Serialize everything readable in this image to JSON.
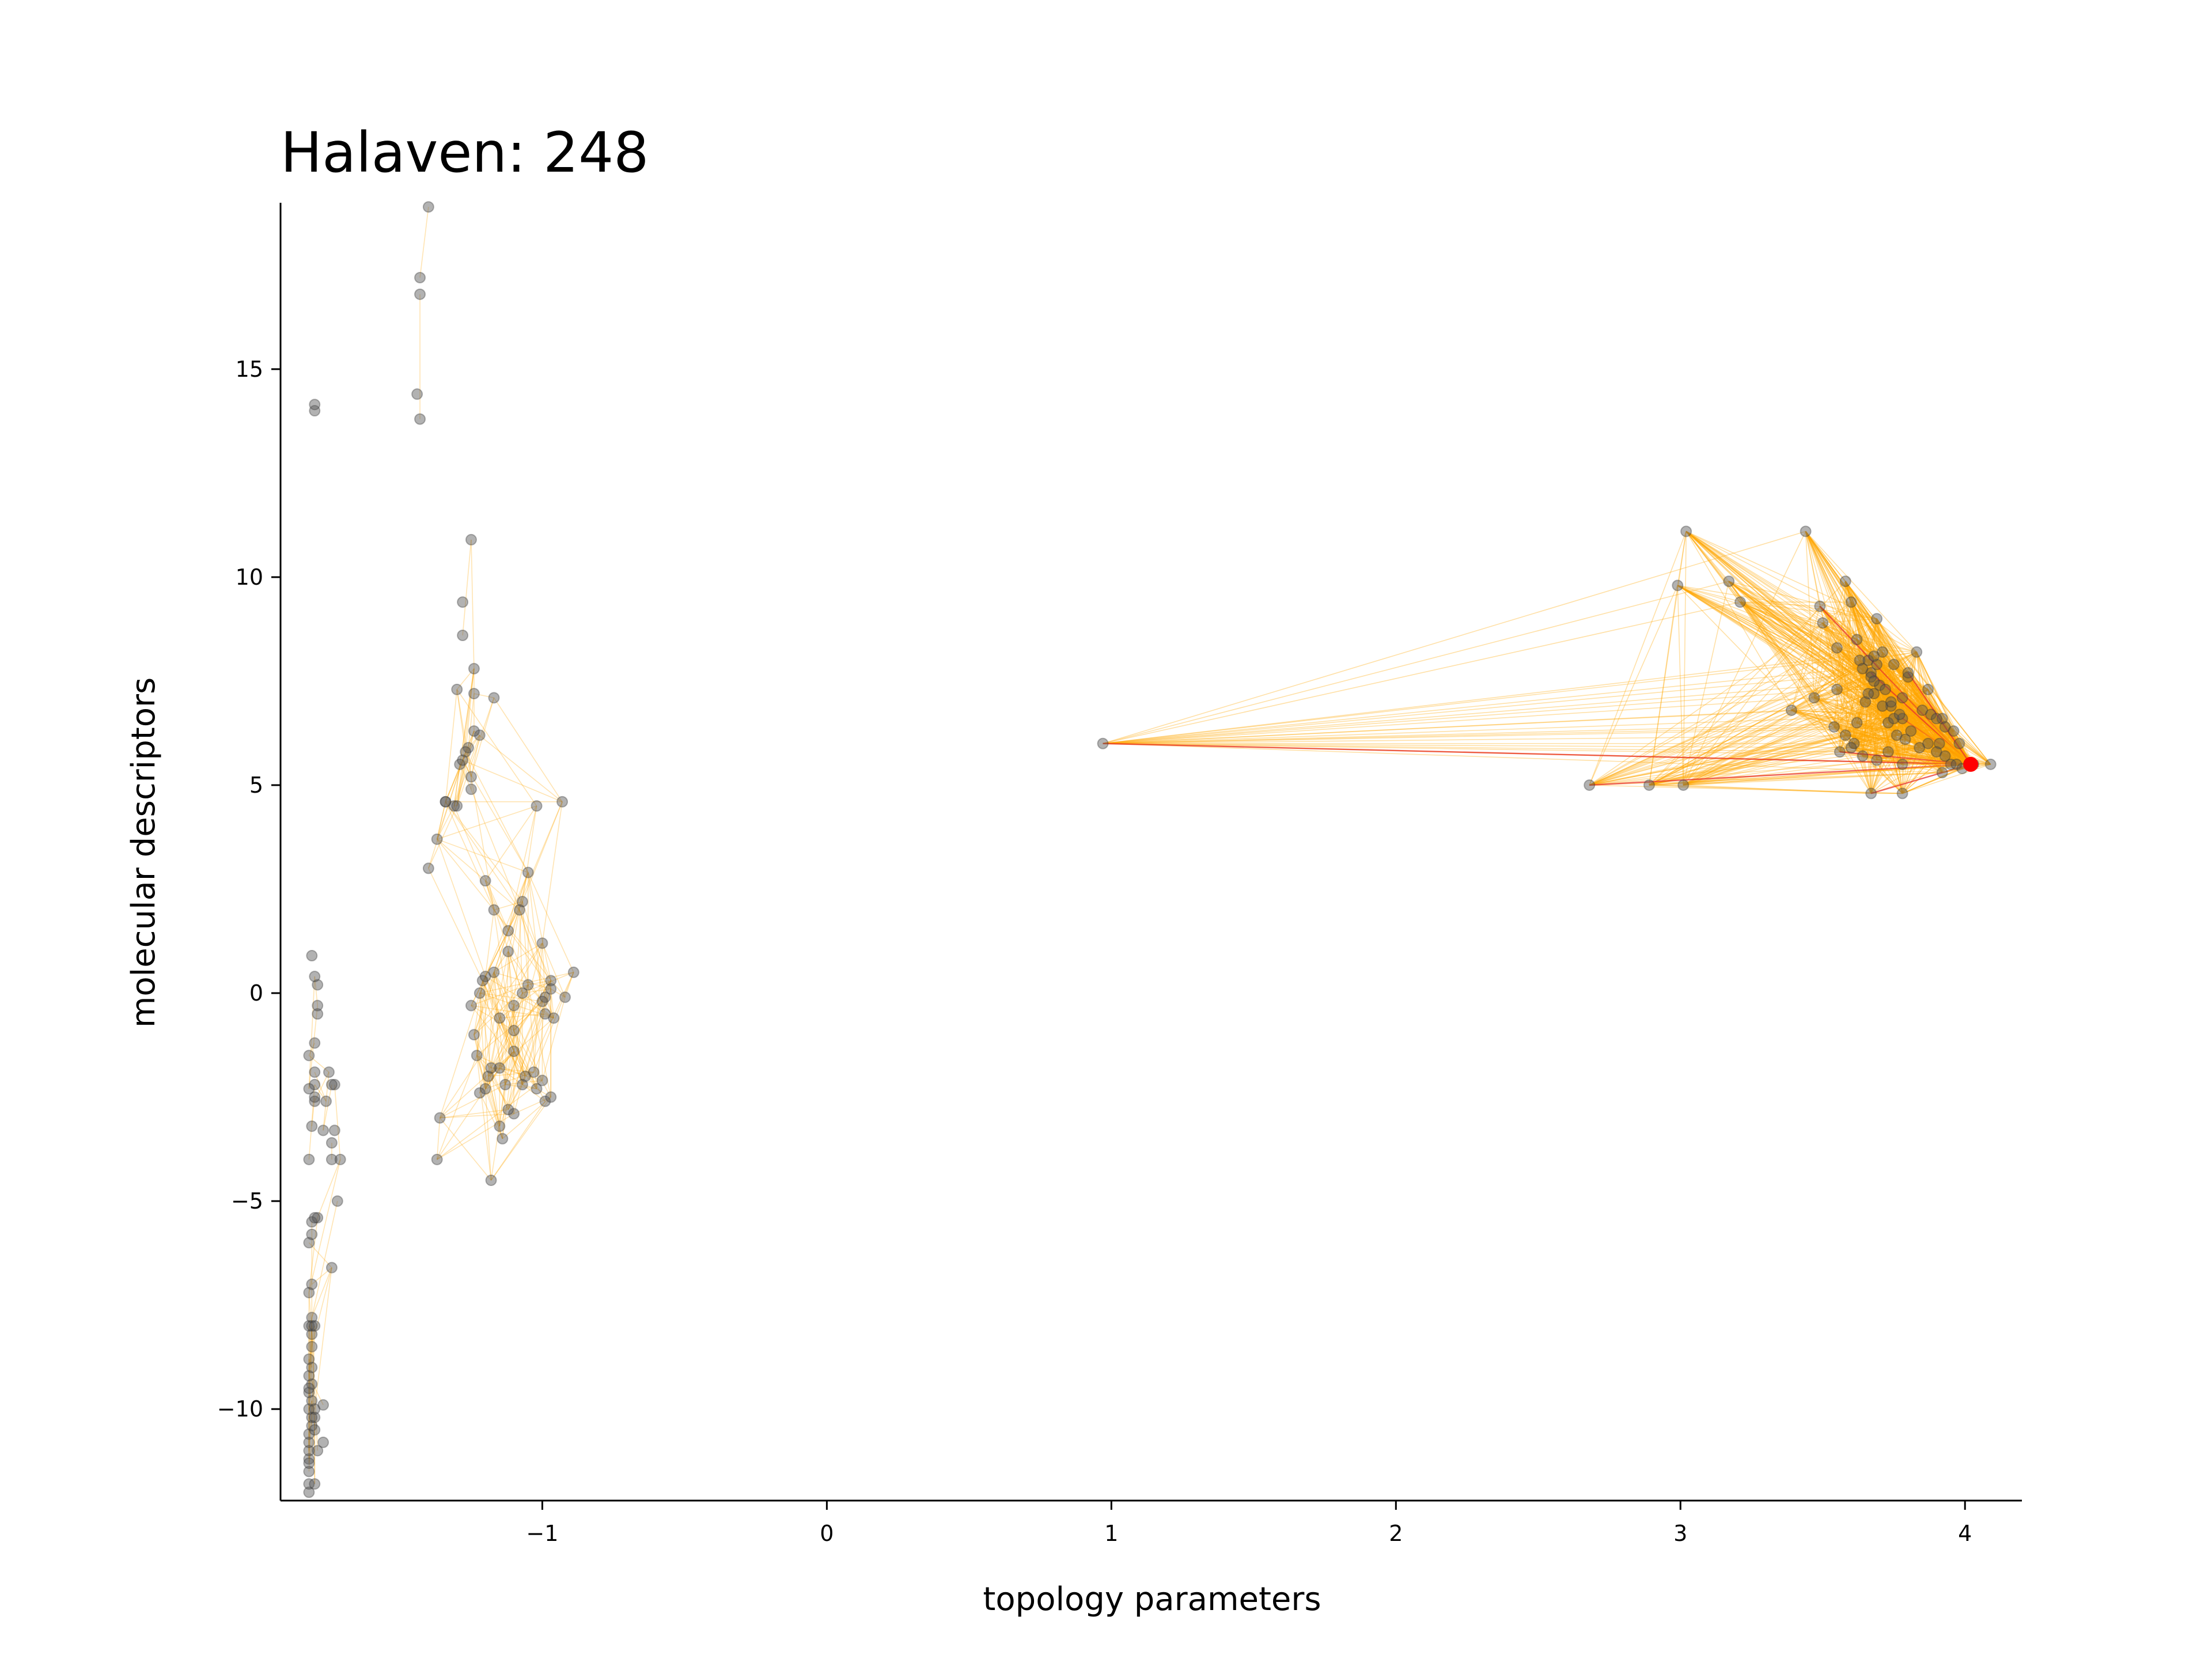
{
  "chart_data": {
    "type": "scatter",
    "title": "Halaven: 248",
    "xlabel": "topology parameters",
    "ylabel": "molecular descriptors",
    "xlim": [
      -1.92,
      4.2
    ],
    "ylim": [
      -12.2,
      19.0
    ],
    "xticks": [
      -1,
      0,
      1,
      2,
      3,
      4
    ],
    "xtick_labels": [
      "−1",
      "0",
      "1",
      "2",
      "3",
      "4"
    ],
    "yticks": [
      -10,
      -5,
      0,
      5,
      10,
      15
    ],
    "ytick_labels": [
      "−10",
      "−5",
      "0",
      "5",
      "10",
      "15"
    ],
    "grid": false,
    "colors": {
      "points": "#555555",
      "edges": "#ffa500",
      "highlight": "#ff0000",
      "highlight_edges": "#e8332a"
    },
    "highlight_point": {
      "x": 4.02,
      "y": 5.5
    },
    "series": [
      {
        "x": [
          -1.82,
          -1.82,
          -1.82,
          -1.82,
          -1.82,
          -1.82,
          -1.82,
          -1.81,
          -1.81,
          -1.82,
          -1.81,
          -1.82,
          -1.81,
          -1.82,
          -1.81,
          -1.82,
          -1.81,
          -1.81,
          -1.82,
          -1.81,
          -1.82,
          -1.81,
          -1.82,
          -1.81,
          -1.81,
          -1.79,
          -1.8,
          -1.82,
          -1.81,
          -1.8,
          -1.8,
          -1.8,
          -1.82,
          -1.82,
          -1.8,
          -1.8,
          -1.79,
          -1.79,
          -1.79,
          -1.8,
          -1.81,
          -1.79,
          -1.82,
          -1.81,
          -1.8,
          -1.8,
          -1.77,
          -1.77,
          -1.74,
          -1.74,
          -1.73,
          -1.73,
          -1.74,
          -1.75,
          -1.71,
          -1.72,
          -1.74,
          -1.8,
          -1.8,
          -1.77,
          -1.8,
          -1.76,
          -1.82,
          -1.8,
          -1.8,
          -1.43,
          -1.43,
          -1.44,
          -1.43,
          -1.4,
          -1.4,
          -1.37,
          -1.34,
          -1.31,
          -1.29,
          -1.3,
          -1.28,
          -1.28,
          -1.25,
          -1.24,
          -1.24,
          -1.22,
          -1.24,
          -1.26,
          -1.27,
          -1.28,
          -1.25,
          -1.25,
          -1.3,
          -1.34,
          -1.17,
          -1.2,
          -1.17,
          -1.12,
          -1.12,
          -1.07,
          -1.08,
          -1.05,
          -1.02,
          -0.93,
          -0.89,
          -0.97,
          -0.97,
          -0.99,
          -1.0,
          -1.05,
          -1.07,
          -1.1,
          -1.1,
          -1.15,
          -1.17,
          -1.2,
          -1.21,
          -1.22,
          -1.25,
          -1.24,
          -1.23,
          -1.19,
          -1.15,
          -1.1,
          -1.06,
          -1.02,
          -0.99,
          -1.0,
          -0.97,
          -0.96,
          -0.92,
          -1.03,
          -1.07,
          -1.1,
          -1.12,
          -1.13,
          -1.18,
          -1.2,
          -1.22,
          -1.36,
          -1.37,
          -1.15,
          -1.14,
          -1.18,
          -1.0,
          -0.99,
          0.97,
          2.68,
          2.89,
          3.01,
          3.02,
          2.99,
          3.17,
          3.21,
          3.44,
          3.49,
          3.5,
          3.58,
          3.6,
          3.63,
          3.66,
          3.67,
          3.69,
          3.71,
          3.74,
          3.78,
          3.8,
          3.83,
          3.87,
          3.91,
          3.92,
          3.95,
          3.97,
          3.99,
          4.03,
          4.09,
          3.39,
          3.47,
          3.55,
          3.56,
          3.61,
          3.64,
          3.67,
          3.7,
          3.73,
          3.76,
          3.79,
          3.85,
          3.88,
          3.9,
          3.93,
          3.96,
          3.98,
          3.54,
          3.58,
          3.62,
          3.65,
          3.68,
          3.71,
          3.75,
          3.78,
          3.81,
          3.84,
          3.87,
          3.9,
          3.93,
          3.66,
          3.68,
          3.69,
          3.72,
          3.74,
          3.77,
          3.6,
          3.64,
          3.69,
          3.73,
          3.78,
          3.55,
          3.62,
          3.68,
          3.75,
          3.8,
          3.67,
          3.78,
          3.92
        ],
        "y": [
          -12.0,
          -11.8,
          -11.5,
          -11.2,
          -11.0,
          -10.8,
          -10.6,
          -10.4,
          -10.2,
          -10.0,
          -9.8,
          -9.6,
          -9.4,
          -9.2,
          -9.0,
          -8.8,
          -8.5,
          -8.2,
          -8.0,
          -7.8,
          -7.2,
          -7.0,
          -6.0,
          -5.8,
          -5.5,
          -5.4,
          -5.4,
          -4.0,
          -3.2,
          -2.6,
          -2.5,
          -2.2,
          -2.3,
          -1.5,
          -1.2,
          -1.9,
          -0.5,
          -0.3,
          0.2,
          0.4,
          0.9,
          -11.0,
          -9.5,
          -8.0,
          -10.5,
          -10.0,
          -9.9,
          -3.3,
          -3.6,
          -4.0,
          -3.3,
          -2.2,
          -2.2,
          -1.9,
          -4.0,
          -5.0,
          -6.6,
          -10.2,
          -11.8,
          -10.8,
          -8.0,
          -2.6,
          -11.3,
          14.0,
          14.15,
          16.8,
          17.2,
          14.4,
          13.8,
          18.9,
          3.0,
          3.7,
          4.6,
          4.5,
          5.5,
          7.3,
          8.6,
          9.4,
          10.9,
          7.8,
          7.2,
          6.2,
          6.3,
          5.9,
          5.8,
          5.6,
          5.2,
          4.9,
          4.5,
          4.6,
          7.1,
          2.7,
          2.0,
          1.5,
          1.0,
          2.2,
          2.0,
          2.9,
          4.5,
          4.6,
          0.5,
          0.3,
          0.1,
          -0.1,
          -0.2,
          0.2,
          0.0,
          -0.3,
          -0.9,
          -0.6,
          0.5,
          0.4,
          0.3,
          0.0,
          -0.3,
          -1.0,
          -1.5,
          -2.0,
          -1.8,
          -1.4,
          -2.0,
          -2.3,
          -2.6,
          -2.1,
          -2.5,
          -0.6,
          -0.1,
          -1.9,
          -2.2,
          -2.9,
          -2.8,
          -2.2,
          -1.8,
          -2.3,
          -2.4,
          -3.0,
          -4.0,
          -3.2,
          -3.5,
          -4.5,
          1.2,
          -0.5,
          6.0,
          5.0,
          5.0,
          5.0,
          11.1,
          9.8,
          9.9,
          9.4,
          11.1,
          9.3,
          8.9,
          9.9,
          9.4,
          8.0,
          8.0,
          7.7,
          9.0,
          8.2,
          6.9,
          6.6,
          7.6,
          8.2,
          7.3,
          6.0,
          6.6,
          5.5,
          5.5,
          5.4,
          5.5,
          5.5,
          6.8,
          7.1,
          7.3,
          5.8,
          6.0,
          7.8,
          7.6,
          7.4,
          6.5,
          6.2,
          6.1,
          6.8,
          6.7,
          6.6,
          6.4,
          6.3,
          6.0,
          6.4,
          6.2,
          6.5,
          7.0,
          7.2,
          6.9,
          6.6,
          7.1,
          6.3,
          5.9,
          6.0,
          5.8,
          5.7,
          7.2,
          7.5,
          7.9,
          7.3,
          7.0,
          6.7,
          5.9,
          5.7,
          5.6,
          5.8,
          5.5,
          8.3,
          8.5,
          8.1,
          7.9,
          7.7,
          4.8,
          4.8,
          5.3
        ]
      }
    ]
  }
}
